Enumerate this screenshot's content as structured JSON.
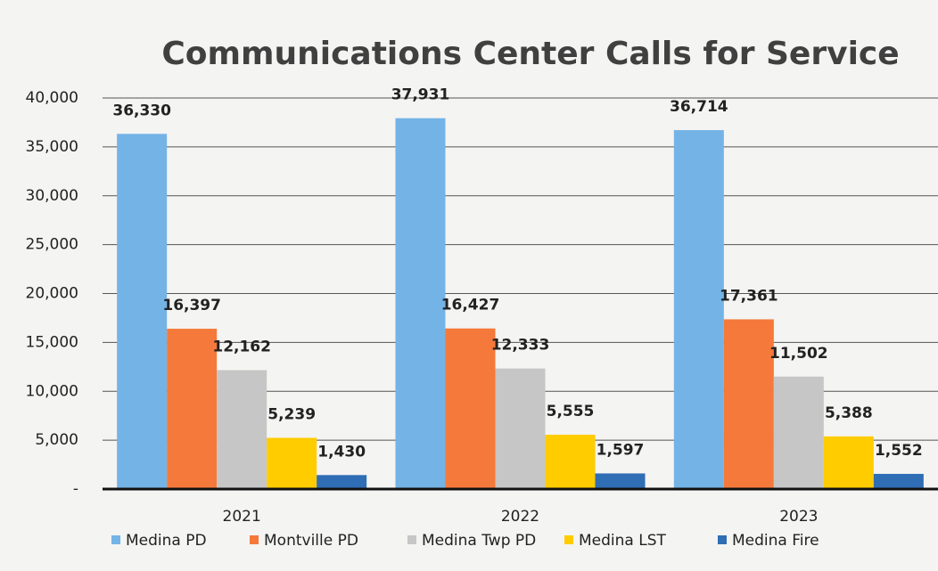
{
  "chart_data": {
    "type": "bar",
    "title": "Communications Center Calls for Service",
    "categories": [
      "2021",
      "2022",
      "2023"
    ],
    "series": [
      {
        "name": "Medina PD",
        "color": "#74b3e6",
        "values": [
          36330,
          37931,
          36714
        ],
        "value_labels": [
          "36,330",
          "37,931",
          "36,714"
        ]
      },
      {
        "name": "Montville PD",
        "color": "#f5793a",
        "values": [
          16397,
          16427,
          17361
        ],
        "value_labels": [
          "16,397",
          "16,427",
          "17,361"
        ]
      },
      {
        "name": "Medina Twp PD",
        "color": "#c6c6c6",
        "values": [
          12162,
          12333,
          11502
        ],
        "value_labels": [
          "12,162",
          "12,333",
          "11,502"
        ]
      },
      {
        "name": "Medina LST",
        "color": "#ffcc00",
        "values": [
          5239,
          5555,
          5388
        ],
        "value_labels": [
          "5,239",
          "5,555",
          "5,388"
        ]
      },
      {
        "name": "Medina Fire",
        "color": "#2f6db5",
        "values": [
          1430,
          1597,
          1552
        ],
        "value_labels": [
          "1,430",
          "1,597",
          "1,552"
        ]
      }
    ],
    "ylim": [
      0,
      40000
    ],
    "yticks": [
      {
        "value": 0,
        "label": "-"
      },
      {
        "value": 5000,
        "label": "5,000"
      },
      {
        "value": 10000,
        "label": "10,000"
      },
      {
        "value": 15000,
        "label": "15,000"
      },
      {
        "value": 20000,
        "label": "20,000"
      },
      {
        "value": 25000,
        "label": "25,000"
      },
      {
        "value": 30000,
        "label": "30,000"
      },
      {
        "value": 35000,
        "label": "35,000"
      },
      {
        "value": 40000,
        "label": "40,000"
      }
    ],
    "grid": true,
    "legend": "bottom"
  }
}
